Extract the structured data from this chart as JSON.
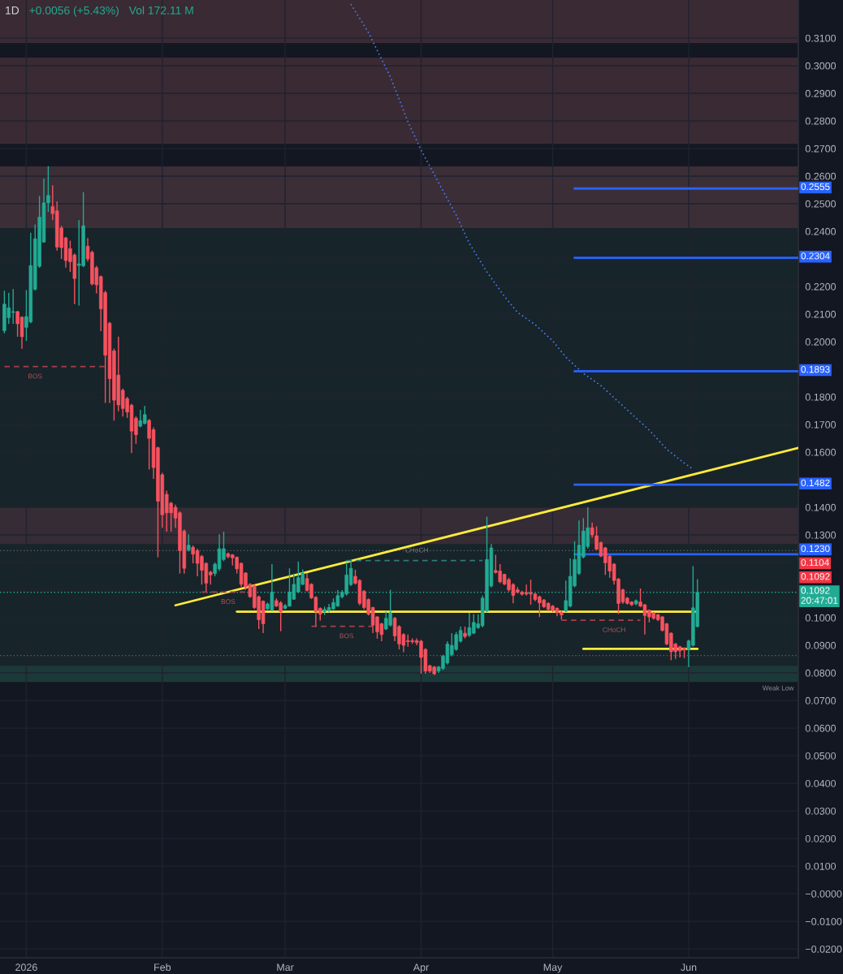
{
  "chart_data": {
    "type": "candlestick",
    "title": "1D",
    "x": [
      "2025-12-27",
      "2025-12-28",
      "2025-12-29",
      "2025-12-30",
      "2025-12-31",
      "2026-01-01",
      "2026-01-02",
      "2026-01-03",
      "2026-01-04",
      "2026-01-05",
      "2026-01-06",
      "2026-01-07",
      "2026-01-08",
      "2026-01-09",
      "2026-01-10",
      "2026-01-11",
      "2026-01-12",
      "2026-01-13",
      "2026-01-14",
      "2026-01-15",
      "2026-01-16",
      "2026-01-17",
      "2026-01-18",
      "2026-01-19",
      "2026-01-20",
      "2026-01-21",
      "2026-01-22",
      "2026-01-23",
      "2026-01-24",
      "2026-01-25",
      "2026-01-26",
      "2026-01-27",
      "2026-01-28",
      "2026-01-29",
      "2026-01-30",
      "2026-01-31",
      "2026-02-01",
      "2026-02-02",
      "2026-02-03",
      "2026-02-04",
      "2026-02-05",
      "2026-02-06",
      "2026-02-07",
      "2026-02-08",
      "2026-02-09",
      "2026-02-10",
      "2026-02-11",
      "2026-02-12",
      "2026-02-13",
      "2026-02-14",
      "2026-02-15",
      "2026-02-16",
      "2026-02-17",
      "2026-02-18",
      "2026-02-19",
      "2026-02-20",
      "2026-02-21",
      "2026-02-22",
      "2026-02-23",
      "2026-02-24",
      "2026-02-25",
      "2026-02-26",
      "2026-02-27",
      "2026-02-28",
      "2026-03-01",
      "2026-03-02",
      "2026-03-03",
      "2026-03-04",
      "2026-03-05",
      "2026-03-06",
      "2026-03-07",
      "2026-03-08",
      "2026-03-09",
      "2026-03-10",
      "2026-03-11",
      "2026-03-12",
      "2026-03-13",
      "2026-03-14",
      "2026-03-15",
      "2026-03-16",
      "2026-03-17",
      "2026-03-18",
      "2026-03-19",
      "2026-03-20",
      "2026-03-21",
      "2026-03-22",
      "2026-03-23",
      "2026-03-24",
      "2026-03-25",
      "2026-03-26",
      "2026-03-27",
      "2026-03-28",
      "2026-03-29",
      "2026-03-30",
      "2026-03-31",
      "2026-04-01",
      "2026-04-02",
      "2026-04-03",
      "2026-04-04",
      "2026-04-05",
      "2026-04-06",
      "2026-04-07",
      "2026-04-08",
      "2026-04-09",
      "2026-04-10",
      "2026-04-11",
      "2026-04-12",
      "2026-04-13",
      "2026-04-14",
      "2026-04-15",
      "2026-04-16",
      "2026-04-17",
      "2026-04-18",
      "2026-04-19",
      "2026-04-20",
      "2026-04-21",
      "2026-04-22",
      "2026-04-23",
      "2026-04-24",
      "2026-04-25",
      "2026-04-26",
      "2026-04-27",
      "2026-04-28",
      "2026-04-29",
      "2026-04-30",
      "2026-05-01",
      "2026-05-02",
      "2026-05-03",
      "2026-05-04",
      "2026-05-05",
      "2026-05-06",
      "2026-05-07",
      "2026-05-08",
      "2026-05-09",
      "2026-05-10",
      "2026-05-11",
      "2026-05-12",
      "2026-05-13",
      "2026-05-14",
      "2026-05-15",
      "2026-05-16",
      "2026-05-17",
      "2026-05-18",
      "2026-05-19",
      "2026-05-20",
      "2026-05-21",
      "2026-05-22",
      "2026-05-23",
      "2026-05-24",
      "2026-05-25",
      "2026-05-26",
      "2026-05-27",
      "2026-05-28",
      "2026-05-29",
      "2026-05-30",
      "2026-05-31",
      "2026-06-01",
      "2026-06-02",
      "2026-06-03"
    ],
    "ohlc": [
      [
        0.204,
        0.2185,
        0.203,
        0.2136
      ],
      [
        0.2087,
        0.2177,
        0.2065,
        0.2123
      ],
      [
        0.2106,
        0.2191,
        0.2065,
        0.2109
      ],
      [
        0.2109,
        0.2112,
        0.2018,
        0.2065
      ],
      [
        0.2089,
        0.2092,
        0.1974,
        0.2018
      ],
      [
        0.2052,
        0.2187,
        0.2003,
        0.2091
      ],
      [
        0.2072,
        0.2395,
        0.2067,
        0.2276
      ],
      [
        0.219,
        0.2425,
        0.2185,
        0.2373
      ],
      [
        0.2273,
        0.2528,
        0.2268,
        0.2451
      ],
      [
        0.2361,
        0.2591,
        0.2359,
        0.2503
      ],
      [
        0.2503,
        0.2636,
        0.247,
        0.253
      ],
      [
        0.2489,
        0.2567,
        0.244,
        0.2464
      ],
      [
        0.2474,
        0.2508,
        0.233,
        0.2343
      ],
      [
        0.2412,
        0.242,
        0.23,
        0.2341
      ],
      [
        0.2376,
        0.238,
        0.2268,
        0.2294
      ],
      [
        0.2337,
        0.2366,
        0.2253,
        0.229
      ],
      [
        0.2314,
        0.232,
        0.2136,
        0.2229
      ],
      [
        0.2276,
        0.244,
        0.2131,
        0.2282
      ],
      [
        0.2275,
        0.2542,
        0.227,
        0.242
      ],
      [
        0.2346,
        0.2376,
        0.229,
        0.23
      ],
      [
        0.2324,
        0.233,
        0.2204,
        0.2209
      ],
      [
        0.2268,
        0.2275,
        0.2175,
        0.2206
      ],
      [
        0.2236,
        0.224,
        0.2038,
        0.2119
      ],
      [
        0.2178,
        0.2185,
        0.1778,
        0.1951
      ],
      [
        0.2067,
        0.2072,
        0.1778,
        0.1866
      ],
      [
        0.1967,
        0.1975,
        0.1714,
        0.1788
      ],
      [
        0.1879,
        0.2018,
        0.1748,
        0.1771
      ],
      [
        0.1824,
        0.183,
        0.1729,
        0.1758
      ],
      [
        0.1794,
        0.18,
        0.1724,
        0.1745
      ],
      [
        0.177,
        0.1775,
        0.1596,
        0.1676
      ],
      [
        0.1723,
        0.173,
        0.163,
        0.1663
      ],
      [
        0.1694,
        0.1753,
        0.169,
        0.1714
      ],
      [
        0.1704,
        0.1768,
        0.17,
        0.1736
      ],
      [
        0.1715,
        0.172,
        0.1537,
        0.165
      ],
      [
        0.1681,
        0.169,
        0.1503,
        0.1544
      ],
      [
        0.1616,
        0.162,
        0.1219,
        0.1422
      ],
      [
        0.1518,
        0.1525,
        0.1326,
        0.1373
      ],
      [
        0.1447,
        0.146,
        0.1312,
        0.138
      ],
      [
        0.1415,
        0.142,
        0.1312,
        0.138
      ],
      [
        0.14,
        0.141,
        0.1326,
        0.1361
      ],
      [
        0.138,
        0.1385,
        0.116,
        0.1243
      ],
      [
        0.1314,
        0.132,
        0.116,
        0.1179
      ],
      [
        0.1246,
        0.1302,
        0.124,
        0.1263
      ],
      [
        0.1255,
        0.1262,
        0.1197,
        0.123
      ],
      [
        0.1243,
        0.125,
        0.115,
        0.1197
      ],
      [
        0.1222,
        0.1228,
        0.112,
        0.1172
      ],
      [
        0.1197,
        0.12,
        0.1095,
        0.1125
      ],
      [
        0.1165,
        0.117,
        0.112,
        0.1155
      ],
      [
        0.116,
        0.12,
        0.115,
        0.1194
      ],
      [
        0.1177,
        0.1302,
        0.117,
        0.125
      ],
      [
        0.1211,
        0.1312,
        0.1205,
        0.125
      ],
      [
        0.1232,
        0.1236,
        0.1215,
        0.1221
      ],
      [
        0.1228,
        0.123,
        0.1189,
        0.1217
      ],
      [
        0.1219,
        0.1222,
        0.116,
        0.1177
      ],
      [
        0.1197,
        0.12,
        0.1111,
        0.1121
      ],
      [
        0.1162,
        0.1165,
        0.1101,
        0.1111
      ],
      [
        0.1121,
        0.1125,
        0.1072,
        0.1076
      ],
      [
        0.1116,
        0.112,
        0.1032,
        0.1037
      ],
      [
        0.1076,
        0.108,
        0.0959,
        0.0993
      ],
      [
        0.106,
        0.1063,
        0.0944,
        0.0978
      ],
      [
        0.1032,
        0.1055,
        0.1028,
        0.105
      ],
      [
        0.1027,
        0.1194,
        0.1025,
        0.1093
      ],
      [
        0.1062,
        0.107,
        0.104,
        0.1042
      ],
      [
        0.1054,
        0.106,
        0.0951,
        0.1022
      ],
      [
        0.1034,
        0.105,
        0.103,
        0.1044
      ],
      [
        0.1042,
        0.1179,
        0.104,
        0.1093
      ],
      [
        0.1067,
        0.116,
        0.1065,
        0.1121
      ],
      [
        0.1093,
        0.1204,
        0.109,
        0.1145
      ],
      [
        0.1121,
        0.1175,
        0.1118,
        0.1162
      ],
      [
        0.1142,
        0.1162,
        0.1095,
        0.1099
      ],
      [
        0.1121,
        0.1125,
        0.1068,
        0.1072
      ],
      [
        0.1074,
        0.1078,
        0.0969,
        0.1022
      ],
      [
        0.1034,
        0.1038,
        0.099,
        0.1013
      ],
      [
        0.1022,
        0.104,
        0.101,
        0.103
      ],
      [
        0.1027,
        0.105,
        0.102,
        0.1037
      ],
      [
        0.1032,
        0.107,
        0.1028,
        0.1055
      ],
      [
        0.1042,
        0.11,
        0.104,
        0.108
      ],
      [
        0.1076,
        0.11,
        0.107,
        0.1093
      ],
      [
        0.1086,
        0.1201,
        0.108,
        0.1155
      ],
      [
        0.112,
        0.1207,
        0.1115,
        0.1179
      ],
      [
        0.115,
        0.1174,
        0.112,
        0.1125
      ],
      [
        0.1135,
        0.114,
        0.1045,
        0.1052
      ],
      [
        0.1096,
        0.11,
        0.103,
        0.1037
      ],
      [
        0.1066,
        0.107,
        0.1008,
        0.1013
      ],
      [
        0.1037,
        0.104,
        0.0944,
        0.0973
      ],
      [
        0.1003,
        0.1006,
        0.0924,
        0.0949
      ],
      [
        0.0978,
        0.0982,
        0.0915,
        0.0939
      ],
      [
        0.0959,
        0.1022,
        0.0955,
        0.0998
      ],
      [
        0.0973,
        0.1101,
        0.0968,
        0.1018
      ],
      [
        0.0998,
        0.1003,
        0.0915,
        0.0934
      ],
      [
        0.0968,
        0.0973,
        0.0885,
        0.0905
      ],
      [
        0.0939,
        0.0944,
        0.0875,
        0.09
      ],
      [
        0.0917,
        0.0939,
        0.0895,
        0.0913
      ],
      [
        0.0917,
        0.0925,
        0.0905,
        0.0913
      ],
      [
        0.0917,
        0.0925,
        0.09,
        0.091
      ],
      [
        0.0915,
        0.092,
        0.0797,
        0.0856
      ],
      [
        0.0885,
        0.089,
        0.0797,
        0.0807
      ],
      [
        0.0826,
        0.083,
        0.08,
        0.0807
      ],
      [
        0.0821,
        0.0825,
        0.0792,
        0.0797
      ],
      [
        0.0807,
        0.0826,
        0.08,
        0.0821
      ],
      [
        0.0816,
        0.0866,
        0.081,
        0.0861
      ],
      [
        0.0836,
        0.0915,
        0.083,
        0.0905
      ],
      [
        0.0866,
        0.0944,
        0.086,
        0.09
      ],
      [
        0.0885,
        0.0949,
        0.088,
        0.0939
      ],
      [
        0.0915,
        0.0968,
        0.091,
        0.0954
      ],
      [
        0.0944,
        0.0968,
        0.0925,
        0.0932
      ],
      [
        0.0936,
        0.1018,
        0.093,
        0.0964
      ],
      [
        0.0944,
        0.1013,
        0.094,
        0.0983
      ],
      [
        0.0964,
        0.1013,
        0.096,
        0.0978
      ],
      [
        0.0971,
        0.108,
        0.0965,
        0.1071
      ],
      [
        0.1024,
        0.1366,
        0.102,
        0.1211
      ],
      [
        0.1115,
        0.1267,
        0.111,
        0.1253
      ],
      [
        0.1171,
        0.1228,
        0.116,
        0.1164
      ],
      [
        0.1169,
        0.1194,
        0.1125,
        0.113
      ],
      [
        0.1157,
        0.116,
        0.1118,
        0.1122
      ],
      [
        0.1138,
        0.1145,
        0.1095,
        0.1101
      ],
      [
        0.112,
        0.1125,
        0.1052,
        0.1081
      ],
      [
        0.1101,
        0.1111,
        0.1088,
        0.1093
      ],
      [
        0.1093,
        0.1098,
        0.108,
        0.1085
      ],
      [
        0.1091,
        0.112,
        0.108,
        0.1086
      ],
      [
        0.1091,
        0.1138,
        0.1047,
        0.1086
      ],
      [
        0.1086,
        0.109,
        0.106,
        0.1066
      ],
      [
        0.1076,
        0.108,
        0.1003,
        0.1054
      ],
      [
        0.1064,
        0.1068,
        0.1035,
        0.104
      ],
      [
        0.1052,
        0.1056,
        0.1025,
        0.103
      ],
      [
        0.1042,
        0.1046,
        0.102,
        0.1027
      ],
      [
        0.1034,
        0.1038,
        0.1005,
        0.1018
      ],
      [
        0.102,
        0.1024,
        0.0993,
        0.101
      ],
      [
        0.1024,
        0.1135,
        0.102,
        0.1062
      ],
      [
        0.1042,
        0.1215,
        0.1038,
        0.115
      ],
      [
        0.1115,
        0.1277,
        0.111,
        0.1211
      ],
      [
        0.116,
        0.1352,
        0.1155,
        0.1263
      ],
      [
        0.122,
        0.1361,
        0.1215,
        0.1314
      ],
      [
        0.1258,
        0.14,
        0.125,
        0.1326
      ],
      [
        0.1326,
        0.1345,
        0.129,
        0.13
      ],
      [
        0.1297,
        0.1331,
        0.1245,
        0.1248
      ],
      [
        0.1272,
        0.1276,
        0.122,
        0.1223
      ],
      [
        0.1253,
        0.1257,
        0.1155,
        0.1199
      ],
      [
        0.1223,
        0.1227,
        0.1145,
        0.1169
      ],
      [
        0.1194,
        0.1198,
        0.112,
        0.1135
      ],
      [
        0.114,
        0.1144,
        0.1013,
        0.1052
      ],
      [
        0.1101,
        0.1105,
        0.105,
        0.1057
      ],
      [
        0.1071,
        0.1075,
        0.1048,
        0.1052
      ],
      [
        0.1057,
        0.106,
        0.1043,
        0.1047
      ],
      [
        0.105,
        0.1066,
        0.1045,
        0.1062
      ],
      [
        0.1057,
        0.1106,
        0.1038,
        0.1042
      ],
      [
        0.1047,
        0.105,
        0.0939,
        0.1008
      ],
      [
        0.1027,
        0.103,
        0.0983,
        0.1003
      ],
      [
        0.1018,
        0.1021,
        0.0993,
        0.0998
      ],
      [
        0.1011,
        0.1014,
        0.0988,
        0.0993
      ],
      [
        0.1003,
        0.1006,
        0.095,
        0.0954
      ],
      [
        0.0978,
        0.0981,
        0.09,
        0.0905
      ],
      [
        0.0944,
        0.0947,
        0.0846,
        0.0877
      ],
      [
        0.0905,
        0.0908,
        0.0851,
        0.0877
      ],
      [
        0.0895,
        0.0898,
        0.0856,
        0.088
      ],
      [
        0.089,
        0.0893,
        0.0854,
        0.0883
      ],
      [
        0.0885,
        0.092,
        0.0821,
        0.0916
      ],
      [
        0.09,
        0.1187,
        0.0895,
        0.1036
      ],
      [
        0.0968,
        0.114,
        0.0965,
        0.1092
      ]
    ],
    "colors": [
      "#22ab94",
      "#22ab94",
      "#22ab94",
      "#f7525f",
      "#f7525f",
      "#22ab94",
      "#22ab94",
      "#22ab94",
      "#22ab94",
      "#22ab94",
      "#22ab94",
      "#f7525f",
      "#f7525f",
      "#f7525f",
      "#f7525f",
      "#f7525f",
      "#f7525f",
      "#22ab94",
      "#22ab94",
      "#f7525f",
      "#f7525f",
      "#f7525f",
      "#f7525f",
      "#f7525f",
      "#f7525f",
      "#f7525f",
      "#f7525f",
      "#f7525f",
      "#f7525f",
      "#f7525f",
      "#f7525f",
      "#22ab94",
      "#22ab94",
      "#f7525f",
      "#f7525f",
      "#f7525f",
      "#f7525f",
      "#f7525f",
      "#f7525f",
      "#f7525f",
      "#f7525f",
      "#f7525f",
      "#22ab94",
      "#f7525f",
      "#f7525f",
      "#f7525f",
      "#f7525f",
      "#f7525f",
      "#22ab94",
      "#22ab94",
      "#22ab94",
      "#f7525f",
      "#f7525f",
      "#f7525f",
      "#f7525f",
      "#f7525f",
      "#f7525f",
      "#f7525f",
      "#f7525f",
      "#f7525f",
      "#22ab94",
      "#22ab94",
      "#f7525f",
      "#f7525f",
      "#22ab94",
      "#22ab94",
      "#22ab94",
      "#22ab94",
      "#22ab94",
      "#f7525f",
      "#f7525f",
      "#f7525f",
      "#f7525f",
      "#22ab94",
      "#22ab94",
      "#22ab94",
      "#22ab94",
      "#22ab94",
      "#22ab94",
      "#22ab94",
      "#f7525f",
      "#f7525f",
      "#f7525f",
      "#f7525f",
      "#f7525f",
      "#f7525f",
      "#f7525f",
      "#22ab94",
      "#22ab94",
      "#f7525f",
      "#f7525f",
      "#f7525f",
      "#f7525f",
      "#f7525f",
      "#f7525f",
      "#f7525f",
      "#f7525f",
      "#f7525f",
      "#f7525f",
      "#22ab94",
      "#22ab94",
      "#22ab94",
      "#22ab94",
      "#22ab94",
      "#22ab94",
      "#f7525f",
      "#22ab94",
      "#22ab94",
      "#22ab94",
      "#22ab94",
      "#22ab94",
      "#22ab94",
      "#f7525f",
      "#f7525f",
      "#f7525f",
      "#f7525f",
      "#f7525f",
      "#f7525f",
      "#f7525f",
      "#f7525f",
      "#f7525f",
      "#f7525f",
      "#f7525f",
      "#f7525f",
      "#f7525f",
      "#f7525f",
      "#f7525f",
      "#f7525f",
      "#22ab94",
      "#22ab94",
      "#22ab94",
      "#22ab94",
      "#22ab94",
      "#22ab94",
      "#f7525f",
      "#f7525f",
      "#f7525f",
      "#f7525f",
      "#f7525f",
      "#f7525f",
      "#f7525f",
      "#f7525f",
      "#f7525f",
      "#f7525f",
      "#22ab94",
      "#f7525f",
      "#f7525f",
      "#f7525f",
      "#f7525f",
      "#f7525f",
      "#f7525f",
      "#f7525f",
      "#f7525f",
      "#f7525f",
      "#f7525f",
      "#f7525f",
      "#22ab94",
      "#22ab94",
      "#22ab94"
    ],
    "series": [
      {
        "type": "line",
        "color": "#4a7cf0",
        "line_style": "dotted",
        "x": [
          "2026-03-16",
          "2026-03-20",
          "2026-03-25",
          "2026-03-29",
          "2026-04-01",
          "2026-04-05",
          "2026-04-09",
          "2026-04-12",
          "2026-04-16",
          "2026-04-20",
          "2026-04-23",
          "2026-04-27",
          "2026-05-01",
          "2026-05-04",
          "2026-05-08",
          "2026-05-12",
          "2026-05-16",
          "2026-05-19",
          "2026-05-23",
          "2026-05-27",
          "2026-05-31",
          "2026-06-02"
        ],
        "values": [
          0.3223,
          0.312,
          0.2959,
          0.2797,
          0.2694,
          0.2576,
          0.2459,
          0.2356,
          0.2253,
          0.2164,
          0.2106,
          0.2062,
          0.2003,
          0.1944,
          0.1885,
          0.1841,
          0.1782,
          0.1738,
          0.168,
          0.161,
          0.156,
          0.1538
        ]
      },
      {
        "type": "line",
        "color": "#ffeb3b",
        "line_style": "solid",
        "x": [
          "2026-02-04",
          "2026-06-26"
        ],
        "values": [
          0.1045,
          0.1615
        ]
      },
      {
        "type": "line",
        "color": "#ffeb3b",
        "line_style": "solid",
        "x": [
          "2026-02-18",
          "2026-06-03"
        ],
        "values": [
          0.1022,
          0.1022
        ]
      },
      {
        "type": "line",
        "color": "#ffeb3b",
        "line_style": "solid",
        "x": [
          "2026-05-08",
          "2026-06-03"
        ],
        "values": [
          0.0887,
          0.0887
        ]
      },
      {
        "type": "line",
        "color": "#2962ff",
        "line_style": "solid",
        "x": [
          "2026-05-06",
          "2026-06-26"
        ],
        "values": [
          0.2555,
          0.2555
        ],
        "value_labels": [
          null,
          "0.2555"
        ]
      },
      {
        "type": "line",
        "color": "#2962ff",
        "line_style": "solid",
        "x": [
          "2026-05-06",
          "2026-06-26"
        ],
        "values": [
          0.2304,
          0.2304
        ],
        "value_labels": [
          null,
          "0.2304"
        ]
      },
      {
        "type": "line",
        "color": "#2962ff",
        "line_style": "solid",
        "x": [
          "2026-05-06",
          "2026-06-26"
        ],
        "values": [
          0.1893,
          0.1893
        ],
        "value_labels": [
          null,
          "0.1893"
        ]
      },
      {
        "type": "line",
        "color": "#2962ff",
        "line_style": "solid",
        "x": [
          "2026-05-06",
          "2026-06-26"
        ],
        "values": [
          0.1482,
          0.1482
        ],
        "value_labels": [
          null,
          "0.1482"
        ]
      },
      {
        "type": "line",
        "color": "#2962ff",
        "line_style": "solid",
        "x": [
          "2026-05-06",
          "2026-06-26"
        ],
        "values": [
          0.123,
          0.123
        ],
        "value_labels": [
          null,
          "0.1230"
        ]
      },
      {
        "type": "line",
        "color": "#a83e4c",
        "line_style": "dashed",
        "x": [
          "2025-12-27",
          "2026-01-19"
        ],
        "values": [
          0.191,
          0.191
        ]
      },
      {
        "type": "line",
        "color": "#a83e4c",
        "line_style": "dashed",
        "x": [
          "2026-02-10",
          "2026-02-20"
        ],
        "values": [
          0.1093,
          0.1093
        ]
      },
      {
        "type": "line",
        "color": "#a83e4c",
        "line_style": "dashed",
        "x": [
          "2026-03-07",
          "2026-03-21"
        ],
        "values": [
          0.0969,
          0.0969
        ]
      },
      {
        "type": "line",
        "color": "#2d7d74",
        "line_style": "dashed",
        "x": [
          "2026-03-15",
          "2026-04-15"
        ],
        "values": [
          0.1207,
          0.1207
        ]
      },
      {
        "type": "line",
        "color": "#a83e4c",
        "line_style": "dashed",
        "x": [
          "2026-05-03",
          "2026-05-21"
        ],
        "values": [
          0.0991,
          0.0991
        ]
      }
    ],
    "ref_lines": [
      {
        "axis": "y",
        "value": 0.1092,
        "label": "0.1092\n20:47:01",
        "color": "#22ab94",
        "line_style": "dotted"
      },
      {
        "axis": "y",
        "value": 0.1243,
        "color": "#5d606b",
        "line_style": "dotted"
      },
      {
        "axis": "y",
        "value": 0.0863,
        "color": "#5d606b",
        "line_style": "dotted"
      }
    ],
    "bands": [
      {
        "axis": "y",
        "from": 0.0767,
        "to": 0.2635,
        "color": "#172429"
      },
      {
        "axis": "y",
        "from": 0.2412,
        "to": 0.2635,
        "color": "#3b2e37"
      },
      {
        "axis": "y",
        "from": 0.1267,
        "to": 0.14,
        "color": "#362c35"
      },
      {
        "axis": "y",
        "from": 0.0767,
        "to": 0.0826,
        "color": "#1b3938",
        "label": "Weak Low"
      },
      {
        "axis": "y",
        "from": 0.2717,
        "to": 0.3029,
        "color": "#3a2a33"
      },
      {
        "axis": "y",
        "from": 0.3082,
        "to": 0.3238,
        "color": "#3a2a33"
      }
    ],
    "annotations": [
      "+0.0056 (+5.43%)",
      "Vol 172.11 M",
      {
        "text": "BOS",
        "x": "2026-01-03",
        "y": 0.191
      },
      {
        "text": "BOS",
        "x": "2026-02-16",
        "y": 0.1093
      },
      {
        "text": "BOS",
        "x": "2026-03-15",
        "y": 0.0969
      },
      {
        "text": "CHoCH",
        "x": "2026-03-31",
        "y": 0.1243
      },
      {
        "text": "CHoCH",
        "x": "2026-05-15",
        "y": 0.0991
      },
      {
        "text": "0.1104",
        "x": "2026-06-26",
        "y": 0.1104
      },
      {
        "text": "0.1092",
        "x": "2026-06-26",
        "y": 0.1092
      }
    ],
    "xlim": [
      "2025-12-26",
      "2026-06-26"
    ],
    "xticks": [
      {
        "value": "2026-01-01",
        "label": "2026"
      },
      {
        "value": "2026-02-01",
        "label": "Feb"
      },
      {
        "value": "2026-03-01",
        "label": "Mar"
      },
      {
        "value": "2026-04-01",
        "label": "Apr"
      },
      {
        "value": "2026-05-01",
        "label": "May"
      },
      {
        "value": "2026-06-01",
        "label": "Jun"
      }
    ],
    "ylim": [
      -0.0232,
      0.3238
    ],
    "yticks": [
      {
        "value": 0.31,
        "label": "0.3100"
      },
      {
        "value": 0.3,
        "label": "0.3000"
      },
      {
        "value": 0.29,
        "label": "0.2900"
      },
      {
        "value": 0.28,
        "label": "0.2800"
      },
      {
        "value": 0.27,
        "label": "0.2700"
      },
      {
        "value": 0.26,
        "label": "0.2600"
      },
      {
        "value": 0.25,
        "label": "0.2500"
      },
      {
        "value": 0.24,
        "label": "0.2400"
      },
      {
        "value": 0.23,
        "label": null
      },
      {
        "value": 0.22,
        "label": "0.2200"
      },
      {
        "value": 0.21,
        "label": "0.2100"
      },
      {
        "value": 0.2,
        "label": "0.2000"
      },
      {
        "value": 0.19,
        "label": null
      },
      {
        "value": 0.18,
        "label": "0.1800"
      },
      {
        "value": 0.17,
        "label": "0.1700"
      },
      {
        "value": 0.16,
        "label": "0.1600"
      },
      {
        "value": 0.15,
        "label": null
      },
      {
        "value": 0.14,
        "label": "0.1400"
      },
      {
        "value": 0.13,
        "label": "0.1300"
      },
      {
        "value": 0.12,
        "label": null
      },
      {
        "value": 0.11,
        "label": null
      },
      {
        "value": 0.1,
        "label": "0.1000"
      },
      {
        "value": 0.09,
        "label": "0.0900"
      },
      {
        "value": 0.08,
        "label": "0.0800"
      },
      {
        "value": 0.07,
        "label": "0.0700"
      },
      {
        "value": 0.06,
        "label": "0.0600"
      },
      {
        "value": 0.05,
        "label": "0.0500"
      },
      {
        "value": 0.04,
        "label": "0.0400"
      },
      {
        "value": 0.03,
        "label": "0.0300"
      },
      {
        "value": 0.02,
        "label": "0.0200"
      },
      {
        "value": 0.01,
        "label": "0.0100"
      },
      {
        "value": 0,
        "label": "−0.0000"
      },
      {
        "value": -0.01,
        "label": "−0.0100"
      },
      {
        "value": -0.02,
        "label": "−0.0200"
      }
    ],
    "grid": true
  }
}
